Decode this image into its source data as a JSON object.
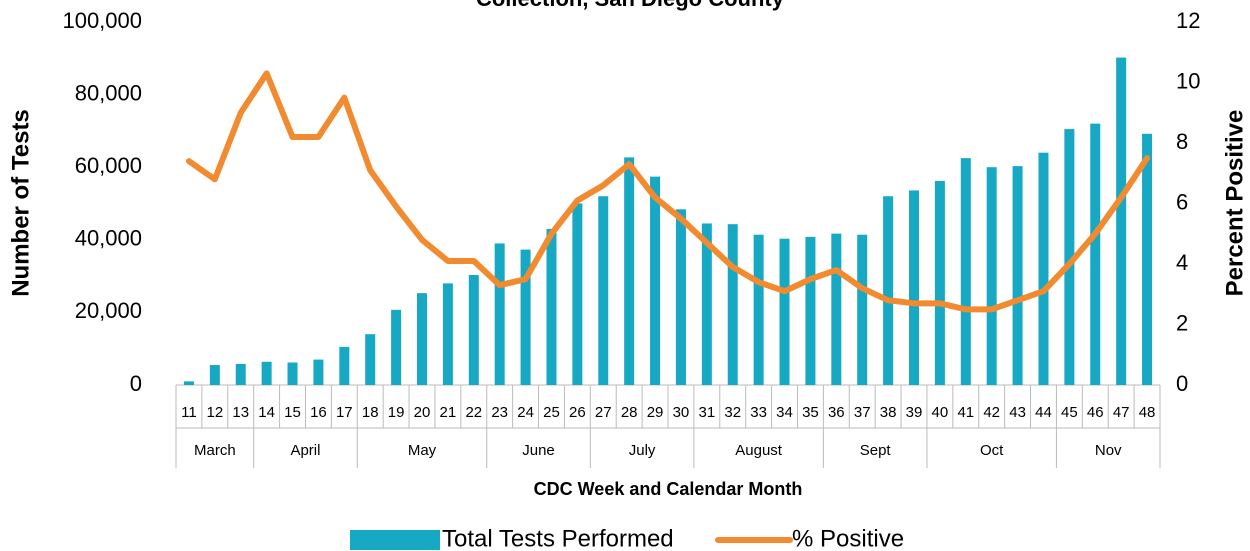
{
  "chart_data": {
    "type": "bar-line",
    "title": "Collection, San Diego County",
    "xlabel": "CDC Week and Calendar Month",
    "ylabel": "Number of Tests",
    "y2label": "Percent Positive",
    "categories": [
      "11",
      "12",
      "13",
      "14",
      "15",
      "16",
      "17",
      "18",
      "19",
      "20",
      "21",
      "22",
      "23",
      "24",
      "25",
      "26",
      "27",
      "28",
      "29",
      "30",
      "31",
      "32",
      "33",
      "34",
      "35",
      "36",
      "37",
      "38",
      "39",
      "40",
      "41",
      "42",
      "43",
      "44",
      "45",
      "46",
      "47",
      "48"
    ],
    "month_categories": [
      "March",
      "March",
      "March",
      "April",
      "April",
      "April",
      "April",
      "May",
      "May",
      "May",
      "May",
      "May",
      "June",
      "June",
      "June",
      "June",
      "July",
      "July",
      "July",
      "July",
      "August",
      "August",
      "August",
      "August",
      "August",
      "Sept",
      "Sept",
      "Sept",
      "Sept",
      "Oct",
      "Oct",
      "Oct",
      "Oct",
      "Oct",
      "Nov",
      "Nov",
      "Nov",
      "Nov"
    ],
    "series": [
      {
        "name": "Total Tests Performed",
        "type": "bar",
        "color": "#17a8c4",
        "values": [
          1000,
          5500,
          5800,
          6400,
          6200,
          7000,
          10500,
          14000,
          20700,
          25300,
          28000,
          30300,
          39000,
          37300,
          43000,
          50000,
          52000,
          62700,
          57400,
          48400,
          44500,
          44300,
          41400,
          40300,
          40800,
          41700,
          41400,
          52000,
          53600,
          56200,
          62500,
          60000,
          60300,
          64000,
          70500,
          72000,
          90200,
          69200
        ]
      },
      {
        "name": "% Positive",
        "type": "line",
        "axis": "y2",
        "color": "#f28a30",
        "values": [
          7.4,
          6.8,
          9.0,
          10.3,
          8.2,
          8.2,
          9.5,
          7.1,
          5.9,
          4.8,
          4.1,
          4.1,
          3.3,
          3.5,
          5.0,
          6.1,
          6.6,
          7.3,
          6.2,
          5.5,
          4.7,
          3.9,
          3.4,
          3.1,
          3.5,
          3.8,
          3.2,
          2.8,
          2.7,
          2.7,
          2.5,
          2.5,
          2.8,
          3.1,
          4.0,
          5.0,
          6.2,
          7.5
        ]
      }
    ],
    "ylim": [
      0,
      100000
    ],
    "yticks": [
      0,
      {
        "value": 20000,
        "label": "20,000"
      },
      {
        "value": 40000,
        "label": "40,000"
      },
      {
        "value": 60000,
        "label": "60,000"
      },
      {
        "value": 80000,
        "label": "80,000"
      },
      {
        "value": 100000,
        "label": "100,000"
      }
    ],
    "y2lim": [
      0,
      12
    ],
    "y2ticks": [
      0,
      2,
      4,
      6,
      8,
      10,
      12
    ],
    "legend": "bottom"
  }
}
